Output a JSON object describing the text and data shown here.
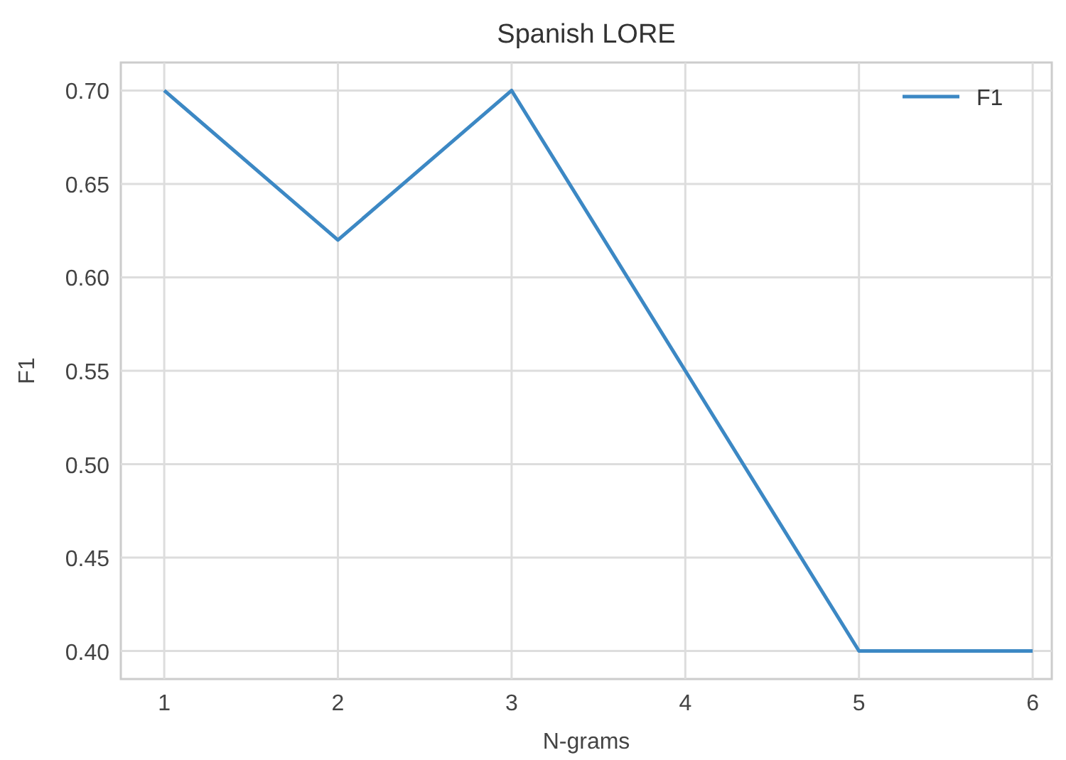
{
  "chart_data": {
    "type": "line",
    "title": "Spanish LORE",
    "xlabel": "N-grams",
    "ylabel": "F1",
    "x": [
      1,
      2,
      3,
      4,
      5,
      6
    ],
    "series": [
      {
        "name": "F1",
        "color": "#3c88c4",
        "values": [
          0.7,
          0.62,
          0.7,
          0.55,
          0.4,
          0.4
        ]
      }
    ],
    "xlim": [
      0.75,
      6.11
    ],
    "xticks": [
      1,
      2,
      3,
      4,
      5,
      6
    ],
    "ylim": [
      0.385,
      0.715
    ],
    "yticks": [
      {
        "value": 0.4,
        "label": "0.40"
      },
      {
        "value": 0.45,
        "label": "0.45"
      },
      {
        "value": 0.5,
        "label": "0.50"
      },
      {
        "value": 0.55,
        "label": "0.55"
      },
      {
        "value": 0.6,
        "label": "0.60"
      },
      {
        "value": 0.65,
        "label": "0.65"
      },
      {
        "value": 0.7,
        "label": "0.70"
      }
    ],
    "grid": true,
    "legend": "top right",
    "marker": "none",
    "line_style": "solid"
  }
}
